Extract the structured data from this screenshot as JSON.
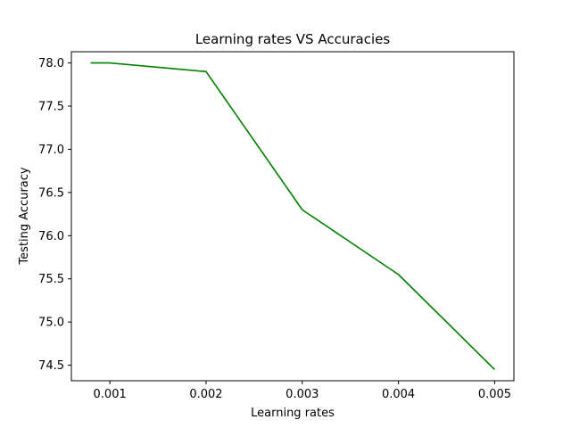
{
  "chart_data": {
    "type": "line",
    "title": "Learning rates VS Accuracies",
    "xlabel": "Learning rates",
    "ylabel": "Testing Accuracy",
    "xlim": [
      0.0006,
      0.0052
    ],
    "ylim": [
      74.32,
      78.13
    ],
    "xticks": [
      0.001,
      0.002,
      0.003,
      0.004,
      0.005
    ],
    "xtick_labels": [
      "0.001",
      "0.002",
      "0.003",
      "0.004",
      "0.005"
    ],
    "yticks": [
      74.5,
      75.0,
      75.5,
      76.0,
      76.5,
      77.0,
      77.5,
      78.0
    ],
    "ytick_labels": [
      "74.5",
      "75.0",
      "75.5",
      "76.0",
      "76.5",
      "77.0",
      "77.5",
      "78.0"
    ],
    "grid": false,
    "series": [
      {
        "color": "#008000",
        "x": [
          0.0008,
          0.001,
          0.002,
          0.003,
          0.004,
          0.005
        ],
        "y": [
          78.0,
          78.0,
          77.9,
          76.3,
          75.55,
          74.45
        ]
      }
    ]
  }
}
